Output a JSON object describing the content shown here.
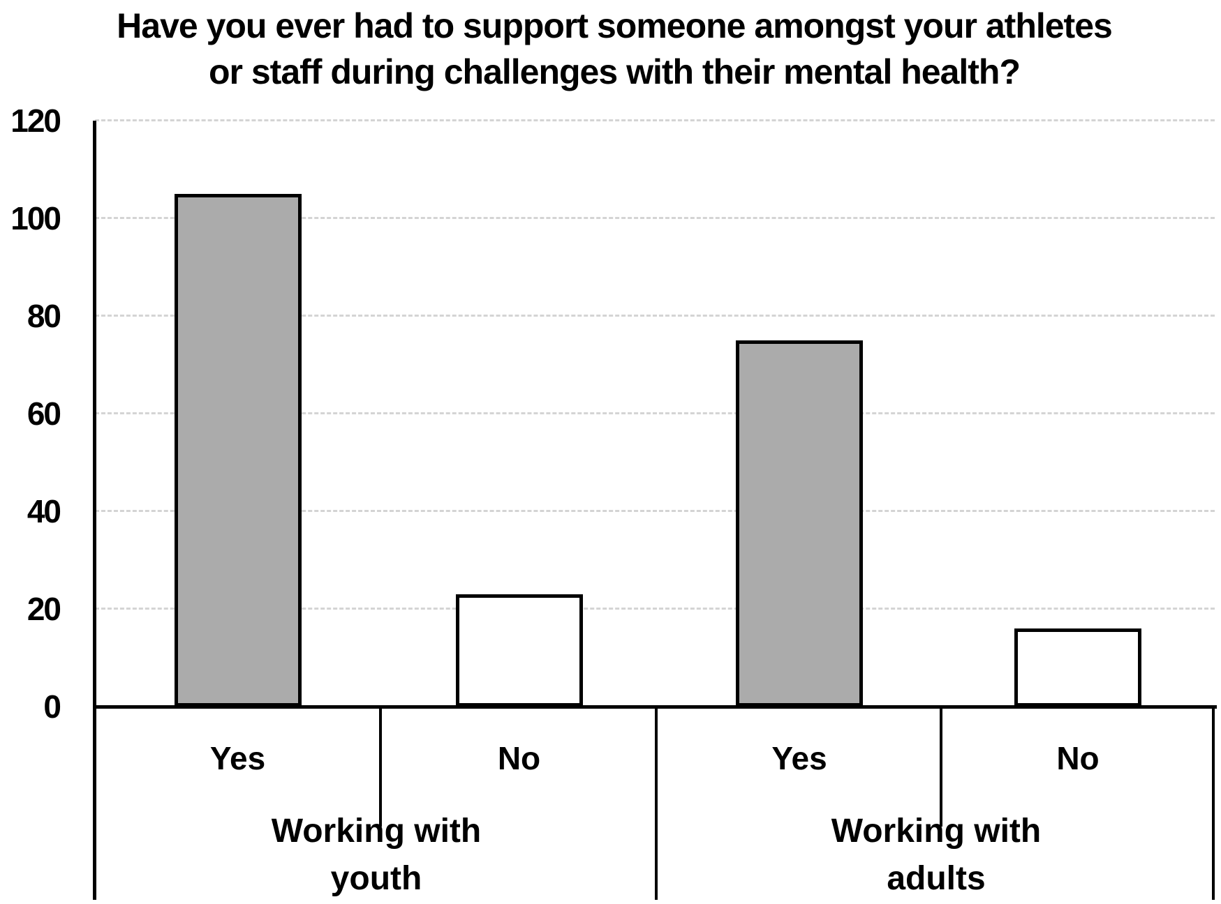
{
  "title": {
    "line1": "Have you ever had to support someone amongst your athletes",
    "line2": "or staff during challenges with their mental health?"
  },
  "chart_data": {
    "type": "bar",
    "title": "Have you ever had to support someone amongst your athletes or staff during challenges with their mental health?",
    "ylim": [
      0,
      120
    ],
    "yticks": [
      0,
      20,
      40,
      60,
      80,
      100,
      120
    ],
    "grid": {
      "horizontal": true,
      "style": "dashed"
    },
    "legend": "none",
    "groups": [
      {
        "label_lines": [
          "Working with",
          "youth"
        ],
        "bars": [
          {
            "category": "Yes",
            "value": 105,
            "fill": "#ababab"
          },
          {
            "category": "No",
            "value": 23,
            "fill": "#ffffff"
          }
        ]
      },
      {
        "label_lines": [
          "Working with",
          "adults"
        ],
        "bars": [
          {
            "category": "Yes",
            "value": 75,
            "fill": "#ababab"
          },
          {
            "category": "No",
            "value": 16,
            "fill": "#ffffff"
          }
        ]
      }
    ],
    "colors": {
      "yes_fill": "#ababab",
      "no_fill": "#ffffff",
      "bar_outline": "#000000",
      "gridline": "#d4d4d4",
      "axis": "#000000",
      "text": "#000000"
    }
  }
}
